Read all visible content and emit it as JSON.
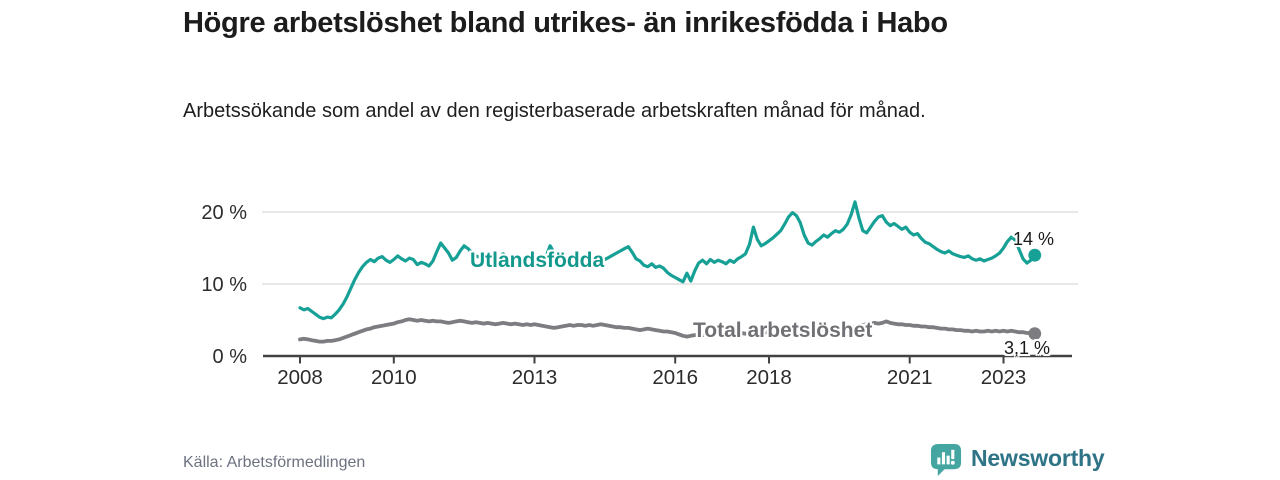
{
  "header": {
    "title": "Högre arbetslöshet bland utrikes- än inrikesfödda i Habo",
    "subtitle": "Arbetssökande som andel av den registerbaserade arbetskraften månad för månad."
  },
  "chart_data": {
    "type": "line",
    "title": "Högre arbetslöshet bland utrikes- än inrikesfödda i Habo",
    "x_start_year": 2008,
    "x_interval": "monthly",
    "xticks": [
      "2008",
      "2010",
      "2013",
      "2016",
      "2018",
      "2021",
      "2023"
    ],
    "xtick_years": [
      2008,
      2010,
      2013,
      2016,
      2018,
      2021,
      2023
    ],
    "yticks": [
      "0 %",
      "10 %",
      "20 %"
    ],
    "ytick_values": [
      0,
      10,
      20
    ],
    "ylim": [
      0,
      22
    ],
    "grid": "horizontal",
    "legend_position": "inline-labels",
    "series": [
      {
        "name": "Utlandsfödda",
        "color": "#16a096",
        "end_value_label": "14 %",
        "end_value": 14,
        "values": [
          6.7,
          6.4,
          6.6,
          6.2,
          5.8,
          5.4,
          5.2,
          5.4,
          5.3,
          5.8,
          6.4,
          7.2,
          8.2,
          9.4,
          10.6,
          11.6,
          12.4,
          13.0,
          13.4,
          13.1,
          13.6,
          13.8,
          13.3,
          13.0,
          13.4,
          13.9,
          13.5,
          13.2,
          13.6,
          13.4,
          12.7,
          13.0,
          12.8,
          12.5,
          13.2,
          14.5,
          15.7,
          15.0,
          14.3,
          13.3,
          13.7,
          14.6,
          15.3,
          14.9,
          14.3,
          13.9,
          13.7,
          14.0,
          14.3,
          13.9,
          13.5,
          13.8,
          14.2,
          13.8,
          13.4,
          13.6,
          13.9,
          13.7,
          14.0,
          13.8,
          13.6,
          14.0,
          13.7,
          13.9,
          15.3,
          14.4,
          13.6,
          13.1,
          13.0,
          13.2,
          13.4,
          13.2,
          13.0,
          13.2,
          13.4,
          13.1,
          13.3,
          13.5,
          13.4,
          13.7,
          14.0,
          14.3,
          14.6,
          14.9,
          15.2,
          14.4,
          13.5,
          13.2,
          12.6,
          12.4,
          12.8,
          12.3,
          12.5,
          12.2,
          11.6,
          11.2,
          10.9,
          10.6,
          10.3,
          11.5,
          10.4,
          11.8,
          12.9,
          13.3,
          12.8,
          13.4,
          13.0,
          13.3,
          13.1,
          12.8,
          13.3,
          13.0,
          13.5,
          13.8,
          14.2,
          15.5,
          17.9,
          16.2,
          15.3,
          15.6,
          16.0,
          16.4,
          16.9,
          17.4,
          18.3,
          19.3,
          19.9,
          19.5,
          18.5,
          16.8,
          15.7,
          15.4,
          15.9,
          16.3,
          16.8,
          16.5,
          17.0,
          17.4,
          17.2,
          17.6,
          18.3,
          19.6,
          21.4,
          19.2,
          17.4,
          17.1,
          17.9,
          18.7,
          19.3,
          19.5,
          18.6,
          18.1,
          18.4,
          18.0,
          17.6,
          17.9,
          17.2,
          16.8,
          17.0,
          16.3,
          15.8,
          15.6,
          15.2,
          14.8,
          14.5,
          14.3,
          14.6,
          14.2,
          14.0,
          13.8,
          13.7,
          13.9,
          13.5,
          13.3,
          13.5,
          13.2,
          13.4,
          13.6,
          13.9,
          14.3,
          15.0,
          15.9,
          16.5,
          16.1,
          14.8,
          13.5,
          12.9,
          13.3,
          14.0
        ]
      },
      {
        "name": "Total arbetslöshet",
        "color": "#7d7d81",
        "end_value_label": "3,1 %",
        "end_value": 3.1,
        "values": [
          2.3,
          2.4,
          2.3,
          2.2,
          2.1,
          2.0,
          2.0,
          2.1,
          2.1,
          2.2,
          2.3,
          2.5,
          2.7,
          2.9,
          3.1,
          3.3,
          3.5,
          3.7,
          3.8,
          4.0,
          4.1,
          4.2,
          4.3,
          4.4,
          4.5,
          4.7,
          4.8,
          5.0,
          5.1,
          5.0,
          4.9,
          5.0,
          4.9,
          4.8,
          4.9,
          4.8,
          4.8,
          4.7,
          4.6,
          4.7,
          4.8,
          4.9,
          4.8,
          4.7,
          4.6,
          4.7,
          4.6,
          4.5,
          4.6,
          4.5,
          4.4,
          4.5,
          4.6,
          4.5,
          4.4,
          4.5,
          4.4,
          4.3,
          4.4,
          4.3,
          4.4,
          4.3,
          4.2,
          4.1,
          4.0,
          3.9,
          4.0,
          4.1,
          4.2,
          4.3,
          4.2,
          4.3,
          4.3,
          4.2,
          4.3,
          4.2,
          4.3,
          4.4,
          4.3,
          4.2,
          4.1,
          4.0,
          4.0,
          3.9,
          3.9,
          3.8,
          3.7,
          3.6,
          3.7,
          3.8,
          3.7,
          3.6,
          3.5,
          3.4,
          3.4,
          3.3,
          3.2,
          3.0,
          2.8,
          2.7,
          2.8,
          2.9,
          3.0,
          2.9,
          2.9,
          3.0,
          2.9,
          3.0,
          3.0,
          3.1,
          3.0,
          3.1,
          3.1,
          3.2,
          3.1,
          3.2,
          3.2,
          3.3,
          3.2,
          3.3,
          3.3,
          3.2,
          3.3,
          3.4,
          3.3,
          3.4,
          3.4,
          3.5,
          3.4,
          3.5,
          3.5,
          3.6,
          3.6,
          3.5,
          3.6,
          3.7,
          3.6,
          3.7,
          3.8,
          3.8,
          3.9,
          4.0,
          4.1,
          4.2,
          4.3,
          4.4,
          4.5,
          4.6,
          4.5,
          4.6,
          4.8,
          4.6,
          4.5,
          4.4,
          4.4,
          4.3,
          4.3,
          4.2,
          4.2,
          4.1,
          4.1,
          4.0,
          4.0,
          3.9,
          3.8,
          3.8,
          3.7,
          3.7,
          3.6,
          3.6,
          3.5,
          3.5,
          3.4,
          3.5,
          3.4,
          3.4,
          3.5,
          3.4,
          3.5,
          3.4,
          3.5,
          3.4,
          3.5,
          3.4,
          3.3,
          3.3,
          3.2,
          3.2,
          3.1
        ]
      }
    ]
  },
  "footer": {
    "source": "Källa: Arbetsförmedlingen",
    "brand": "Newsworthy",
    "brand_text_color": "#2e7386",
    "brand_icon_color": "#45a5a0"
  }
}
